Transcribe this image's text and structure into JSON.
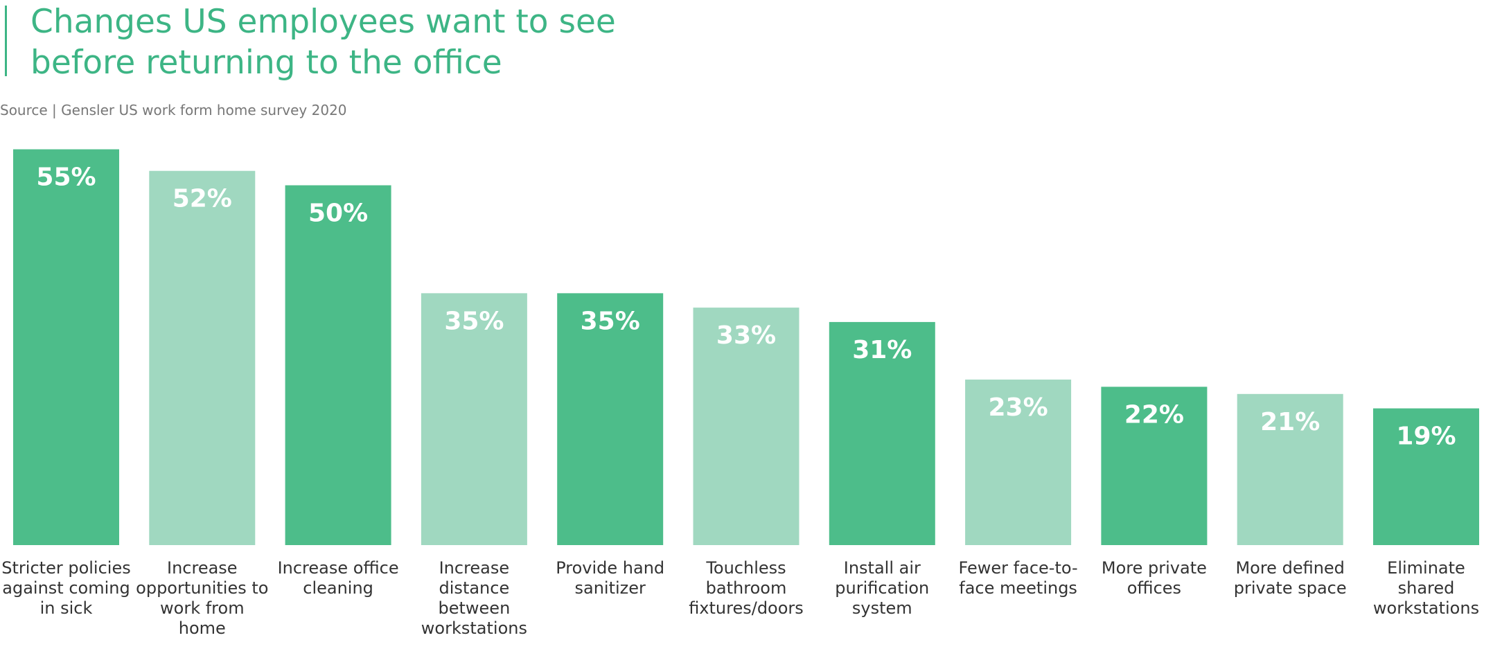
{
  "chart_data": {
    "type": "bar",
    "title": "Changes US employees want to see before returning to the office",
    "subtitle": "Source | Gensler US work form home survey 2020",
    "categories": [
      "Stricter policies against coming in sick",
      "Increase opportunities to work from home",
      "Increase office cleaning",
      "Increase distance between workstations",
      "Provide hand sanitizer",
      "Touchless bathroom fixtures/doors",
      "Install air purification system",
      "Fewer face-to-face meetings",
      "More private offices",
      "More defined private space",
      "Eliminate shared workstations"
    ],
    "values": [
      55,
      52,
      50,
      35,
      35,
      33,
      31,
      23,
      22,
      21,
      19
    ],
    "value_labels": [
      "55%",
      "52%",
      "50%",
      "35%",
      "35%",
      "33%",
      "31%",
      "23%",
      "22%",
      "21%",
      "19%"
    ],
    "colors": [
      "#4dbd8a",
      "#a0d8c0",
      "#4dbd8a",
      "#a0d8c0",
      "#4dbd8a",
      "#a0d8c0",
      "#4dbd8a",
      "#a0d8c0",
      "#4dbd8a",
      "#a0d8c0",
      "#4dbd8a"
    ]
  }
}
